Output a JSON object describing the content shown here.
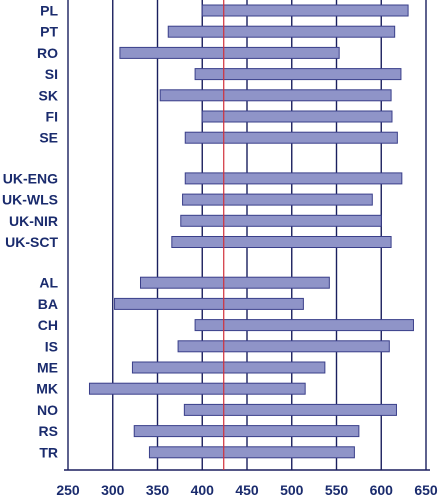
{
  "chart_data": {
    "type": "bar",
    "orientation": "horizontal-range",
    "xlim": [
      250,
      650
    ],
    "xticks": [
      "250",
      "300",
      "350",
      "400",
      "450",
      "500",
      "550",
      "600",
      "650"
    ],
    "reference_line": 424,
    "grid": "vertical",
    "colors": {
      "bar": "#8f94c8",
      "bar_edge": "#3a3f8a",
      "grid": "#1a1f5e",
      "reference": "#d0303a",
      "text": "#1a2b6d"
    },
    "rows": [
      {
        "label": "PL",
        "low": 400,
        "high": 630
      },
      {
        "label": "PT",
        "low": 362,
        "high": 615
      },
      {
        "label": "RO",
        "low": 308,
        "high": 553
      },
      {
        "label": "SI",
        "low": 392,
        "high": 622
      },
      {
        "label": "SK",
        "low": 353,
        "high": 611
      },
      {
        "label": "FI",
        "low": 400,
        "high": 612
      },
      {
        "label": "SE",
        "low": 381,
        "high": 618
      },
      {
        "label": "UK-ENG",
        "low": 381,
        "high": 623
      },
      {
        "label": "UK-WLS",
        "low": 378,
        "high": 590
      },
      {
        "label": "UK-NIR",
        "low": 376,
        "high": 600
      },
      {
        "label": "UK-SCT",
        "low": 366,
        "high": 611
      },
      {
        "label": "AL",
        "low": 331,
        "high": 542
      },
      {
        "label": "BA",
        "low": 302,
        "high": 513
      },
      {
        "label": "CH",
        "low": 392,
        "high": 636
      },
      {
        "label": "IS",
        "low": 373,
        "high": 609
      },
      {
        "label": "ME",
        "low": 322,
        "high": 537
      },
      {
        "label": "MK",
        "low": 274,
        "high": 515
      },
      {
        "label": "NO",
        "low": 380,
        "high": 617
      },
      {
        "label": "RS",
        "low": 324,
        "high": 575
      },
      {
        "label": "TR",
        "low": 341,
        "high": 570
      }
    ]
  }
}
